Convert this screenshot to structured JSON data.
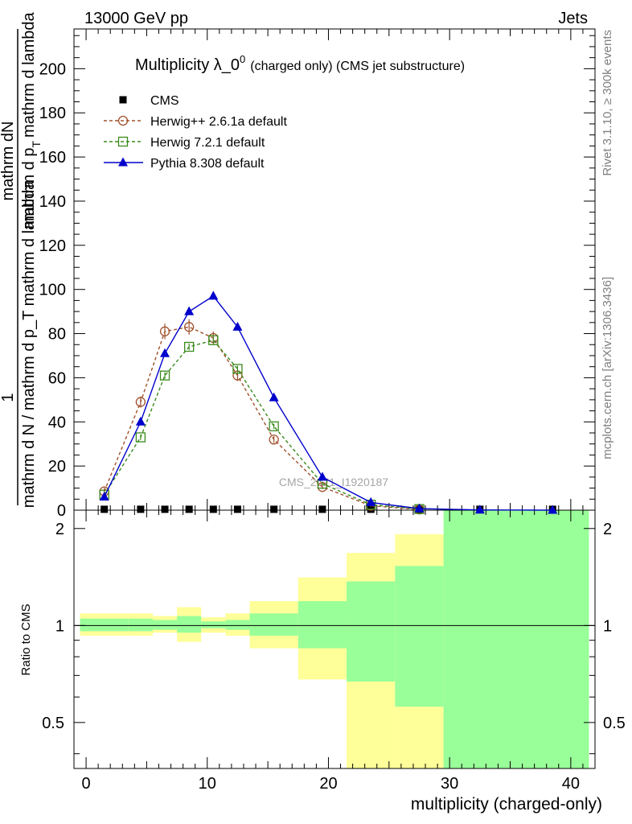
{
  "header": {
    "left_label": "13000 GeV pp",
    "right_label": "Jets"
  },
  "side_labels": {
    "rivet": "Rivet 3.1.10, ≥ 300k events",
    "mcplots": "mcplots.cern.ch [arXiv:1306.3436]"
  },
  "watermark": "CMS_2021_I1920187",
  "chart_data": [
    {
      "type": "line",
      "title_main": "Multiplicity λ_0",
      "title_sup": "0",
      "title_suffix": "(charged only) (CMS jet substructure)",
      "ylabel_top": "1",
      "ylabel_bottom": "mathrm d N / mathrm d p_T mathrm d lambda",
      "ylabel_inner_top": "mathrm d",
      "ylabel_inner_top2": "N",
      "ylabel_inner_bottom": "mathrm d p",
      "ylabel_inner_sub": "T",
      "ylabel_inner_bottom2": "mathrm d lambda",
      "xlim": [
        -1,
        42
      ],
      "ylim": [
        0,
        218
      ],
      "yticks": [
        0,
        20,
        40,
        60,
        80,
        100,
        120,
        140,
        160,
        180,
        200
      ],
      "series": [
        {
          "name": "CMS",
          "color": "#000000",
          "marker": "filled-square",
          "x": [
            1.5,
            4.5,
            6.5,
            8.5,
            10.5,
            12.5,
            15.5,
            19.5,
            23.5,
            27.5,
            32.5,
            38.5
          ],
          "y": [
            0.4,
            0.4,
            0.4,
            0.4,
            0.4,
            0.4,
            0.4,
            0.4,
            0.4,
            0.4,
            0.4,
            0.4
          ]
        },
        {
          "name": "Herwig++ 2.6.1a default",
          "color": "#a0522d",
          "marker": "open-circle",
          "dashed": true,
          "x": [
            1.5,
            4.5,
            6.5,
            8.5,
            10.5,
            12.5,
            15.5,
            19.5,
            23.5,
            27.5
          ],
          "y": [
            8.5,
            49,
            81,
            83,
            78,
            61,
            32,
            10.5,
            2,
            0.3
          ],
          "err": [
            1.5,
            2.5,
            3.5,
            3.5,
            3,
            2.5,
            1.5,
            1,
            0.5,
            0.2
          ]
        },
        {
          "name": "Herwig 7.2.1 default",
          "color": "#3a8a1c",
          "marker": "open-square",
          "dashed": true,
          "x": [
            1.5,
            4.5,
            6.5,
            8.5,
            10.5,
            12.5,
            15.5,
            19.5,
            23.5,
            27.5
          ],
          "y": [
            7,
            33,
            61,
            74,
            77,
            64,
            38,
            12,
            2.5,
            0.5
          ],
          "err": [
            0.8,
            1.2,
            1.5,
            1.5,
            1.5,
            1.5,
            1.2,
            0.8,
            0.3,
            0.1
          ]
        },
        {
          "name": "Pythia 8.308 default",
          "color": "#0000cc",
          "marker": "filled-triangle",
          "dashed": false,
          "x": [
            1.5,
            4.5,
            6.5,
            8.5,
            10.5,
            12.5,
            15.5,
            19.5,
            23.5,
            27.5,
            32.5,
            38.5
          ],
          "y": [
            6,
            40,
            71,
            90,
            97,
            83,
            51,
            15,
            3.5,
            0.7,
            0.1,
            0.0
          ]
        }
      ]
    },
    {
      "type": "area",
      "ylabel": "Ratio to CMS",
      "xlabel": "multiplicity (charged-only)",
      "xlim": [
        -1,
        42
      ],
      "ylim": [
        0.36,
        2.28
      ],
      "yscale": "log",
      "yticks": [
        0.5,
        1,
        2
      ],
      "xticks": [
        0,
        10,
        20,
        30,
        40
      ],
      "reference": 1,
      "bands": [
        {
          "x0": -0.5,
          "x1": 3.5,
          "yellow": [
            0.93,
            1.09
          ],
          "green": [
            0.96,
            1.05
          ]
        },
        {
          "x0": 3.5,
          "x1": 5.5,
          "yellow": [
            0.93,
            1.09
          ],
          "green": [
            0.96,
            1.05
          ]
        },
        {
          "x0": 5.5,
          "x1": 7.5,
          "yellow": [
            0.95,
            1.07
          ],
          "green": [
            0.97,
            1.04
          ]
        },
        {
          "x0": 7.5,
          "x1": 9.5,
          "yellow": [
            0.89,
            1.14
          ],
          "green": [
            0.95,
            1.07
          ]
        },
        {
          "x0": 9.5,
          "x1": 11.5,
          "yellow": [
            0.95,
            1.06
          ],
          "green": [
            0.98,
            1.03
          ]
        },
        {
          "x0": 11.5,
          "x1": 13.5,
          "yellow": [
            0.93,
            1.09
          ],
          "green": [
            0.97,
            1.04
          ]
        },
        {
          "x0": 13.5,
          "x1": 17.5,
          "yellow": [
            0.85,
            1.19
          ],
          "green": [
            0.93,
            1.09
          ]
        },
        {
          "x0": 17.5,
          "x1": 21.5,
          "yellow": [
            0.68,
            1.41
          ],
          "green": [
            0.85,
            1.19
          ]
        },
        {
          "x0": 21.5,
          "x1": 25.5,
          "yellow": [
            0.36,
            1.68
          ],
          "green": [
            0.67,
            1.37
          ]
        },
        {
          "x0": 25.5,
          "x1": 29.5,
          "yellow": [
            0.36,
            1.92
          ],
          "green": [
            0.56,
            1.53
          ]
        },
        {
          "x0": 29.5,
          "x1": 41.5,
          "yellow": [
            0.36,
            2.28
          ],
          "green": [
            0.36,
            2.28
          ]
        }
      ]
    }
  ]
}
